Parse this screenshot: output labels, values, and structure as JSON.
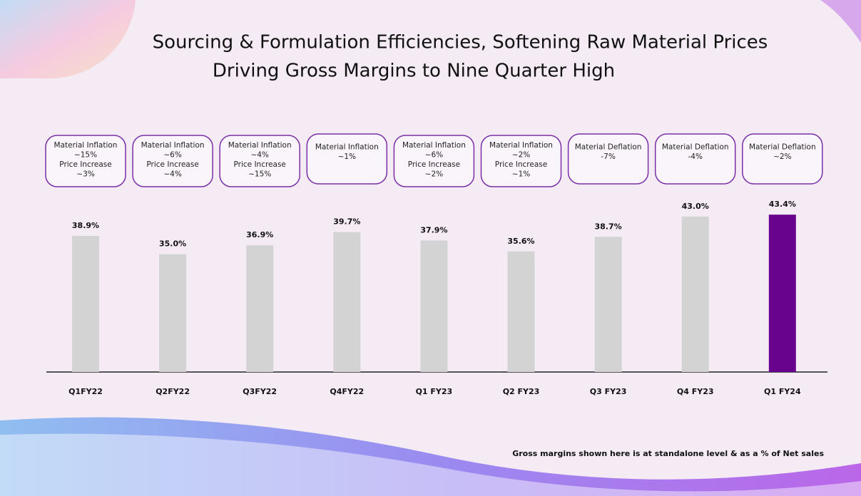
{
  "chart_data": {
    "type": "bar",
    "title": [
      "Sourcing & Formulation Efficiencies, Softening Raw Material Prices",
      "Driving Gross Margins to Nine Quarter High"
    ],
    "categories": [
      "Q1FY22",
      "Q2FY22",
      "Q3FY22",
      "Q4FY22",
      "Q1 FY23",
      "Q2 FY23",
      "Q3 FY23",
      "Q4 FY23",
      "Q1 FY24"
    ],
    "values": [
      38.9,
      35.0,
      36.9,
      39.7,
      37.9,
      35.6,
      38.7,
      43.0,
      43.4
    ],
    "value_labels": [
      "38.9%",
      "35.0%",
      "36.9%",
      "39.7%",
      "37.9%",
      "35.6%",
      "38.7%",
      "43.0%",
      "43.4%"
    ],
    "colors": [
      "#d3d3d3",
      "#d3d3d3",
      "#d3d3d3",
      "#d3d3d3",
      "#d3d3d3",
      "#d3d3d3",
      "#d3d3d3",
      "#d3d3d3",
      "#67038c"
    ],
    "ylim": [
      10,
      46
    ],
    "annotations": [
      [
        "Material Inflation",
        "~15%",
        "Price Increase",
        "~3%"
      ],
      [
        "Material Inflation",
        "~6%",
        "Price Increase",
        "~4%"
      ],
      [
        "Material Inflation",
        "~4%",
        "Price Increase",
        "~15%"
      ],
      [
        "Material Inflation",
        "~1%"
      ],
      [
        "Material Inflation",
        "~6%",
        "Price Increase",
        "~2%"
      ],
      [
        "Material Inflation",
        "~2%",
        "Price Increase",
        "~1%"
      ],
      [
        "Material Deflation",
        "-7%"
      ],
      [
        "Material Deflation",
        "-4%"
      ],
      [
        "Material Deflation",
        "~2%"
      ]
    ],
    "footnote": "Gross margins shown here is at standalone level & as a % of Net sales"
  }
}
